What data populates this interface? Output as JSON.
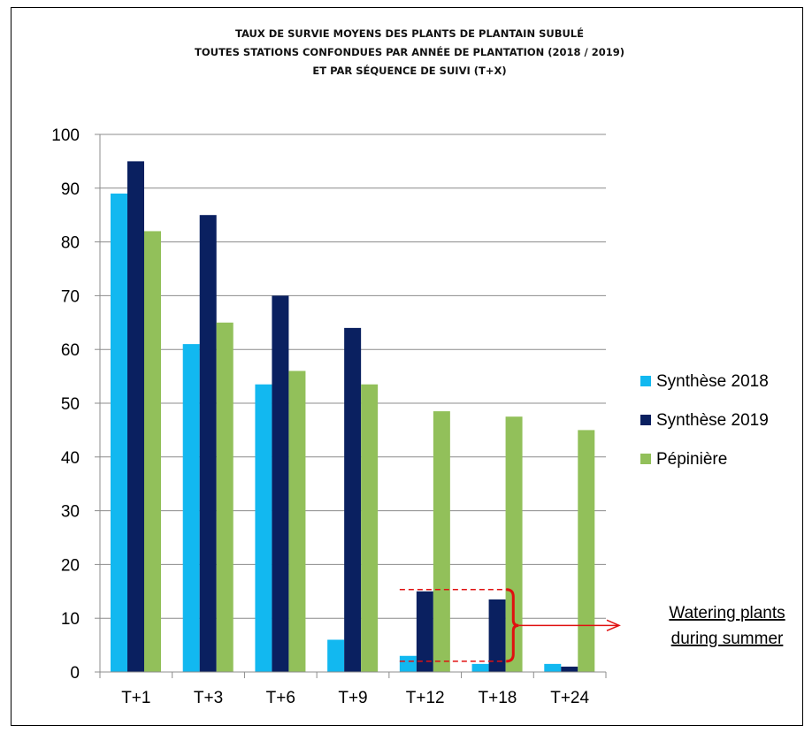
{
  "chart_data": {
    "type": "bar",
    "title": [
      "TAUX DE SURVIE MOYENS DES PLANTS DE PLANTAIN SUBULÉ",
      "TOUTES STATIONS CONFONDUES PAR ANNÉE DE PLANTATION (2018 / 2019)",
      "ET PAR SÉQUENCE DE SUIVI (T+X)"
    ],
    "categories": [
      "T+1",
      "T+3",
      "T+6",
      "T+9",
      "T+12",
      "T+18",
      "T+24"
    ],
    "series": [
      {
        "name": "Synthèse 2018",
        "color": "#12b8f0",
        "values": [
          89,
          61,
          53.5,
          6,
          3,
          1.5,
          1.5
        ]
      },
      {
        "name": "Synthèse 2019",
        "color": "#0a2060",
        "values": [
          95,
          85,
          70,
          64,
          15,
          13.5,
          1
        ]
      },
      {
        "name": "Pépinière",
        "color": "#92c05a",
        "values": [
          82,
          65,
          56,
          53.5,
          48.5,
          47.5,
          45
        ]
      }
    ],
    "ylim": [
      0,
      100
    ],
    "yticks": [
      0,
      10,
      20,
      30,
      40,
      50,
      60,
      70,
      80,
      90,
      100
    ],
    "grid": true,
    "legend_position": "right",
    "annotation": {
      "text_lines": [
        "Watering plants",
        "during summer"
      ],
      "bracket_color": "#e01010"
    }
  }
}
